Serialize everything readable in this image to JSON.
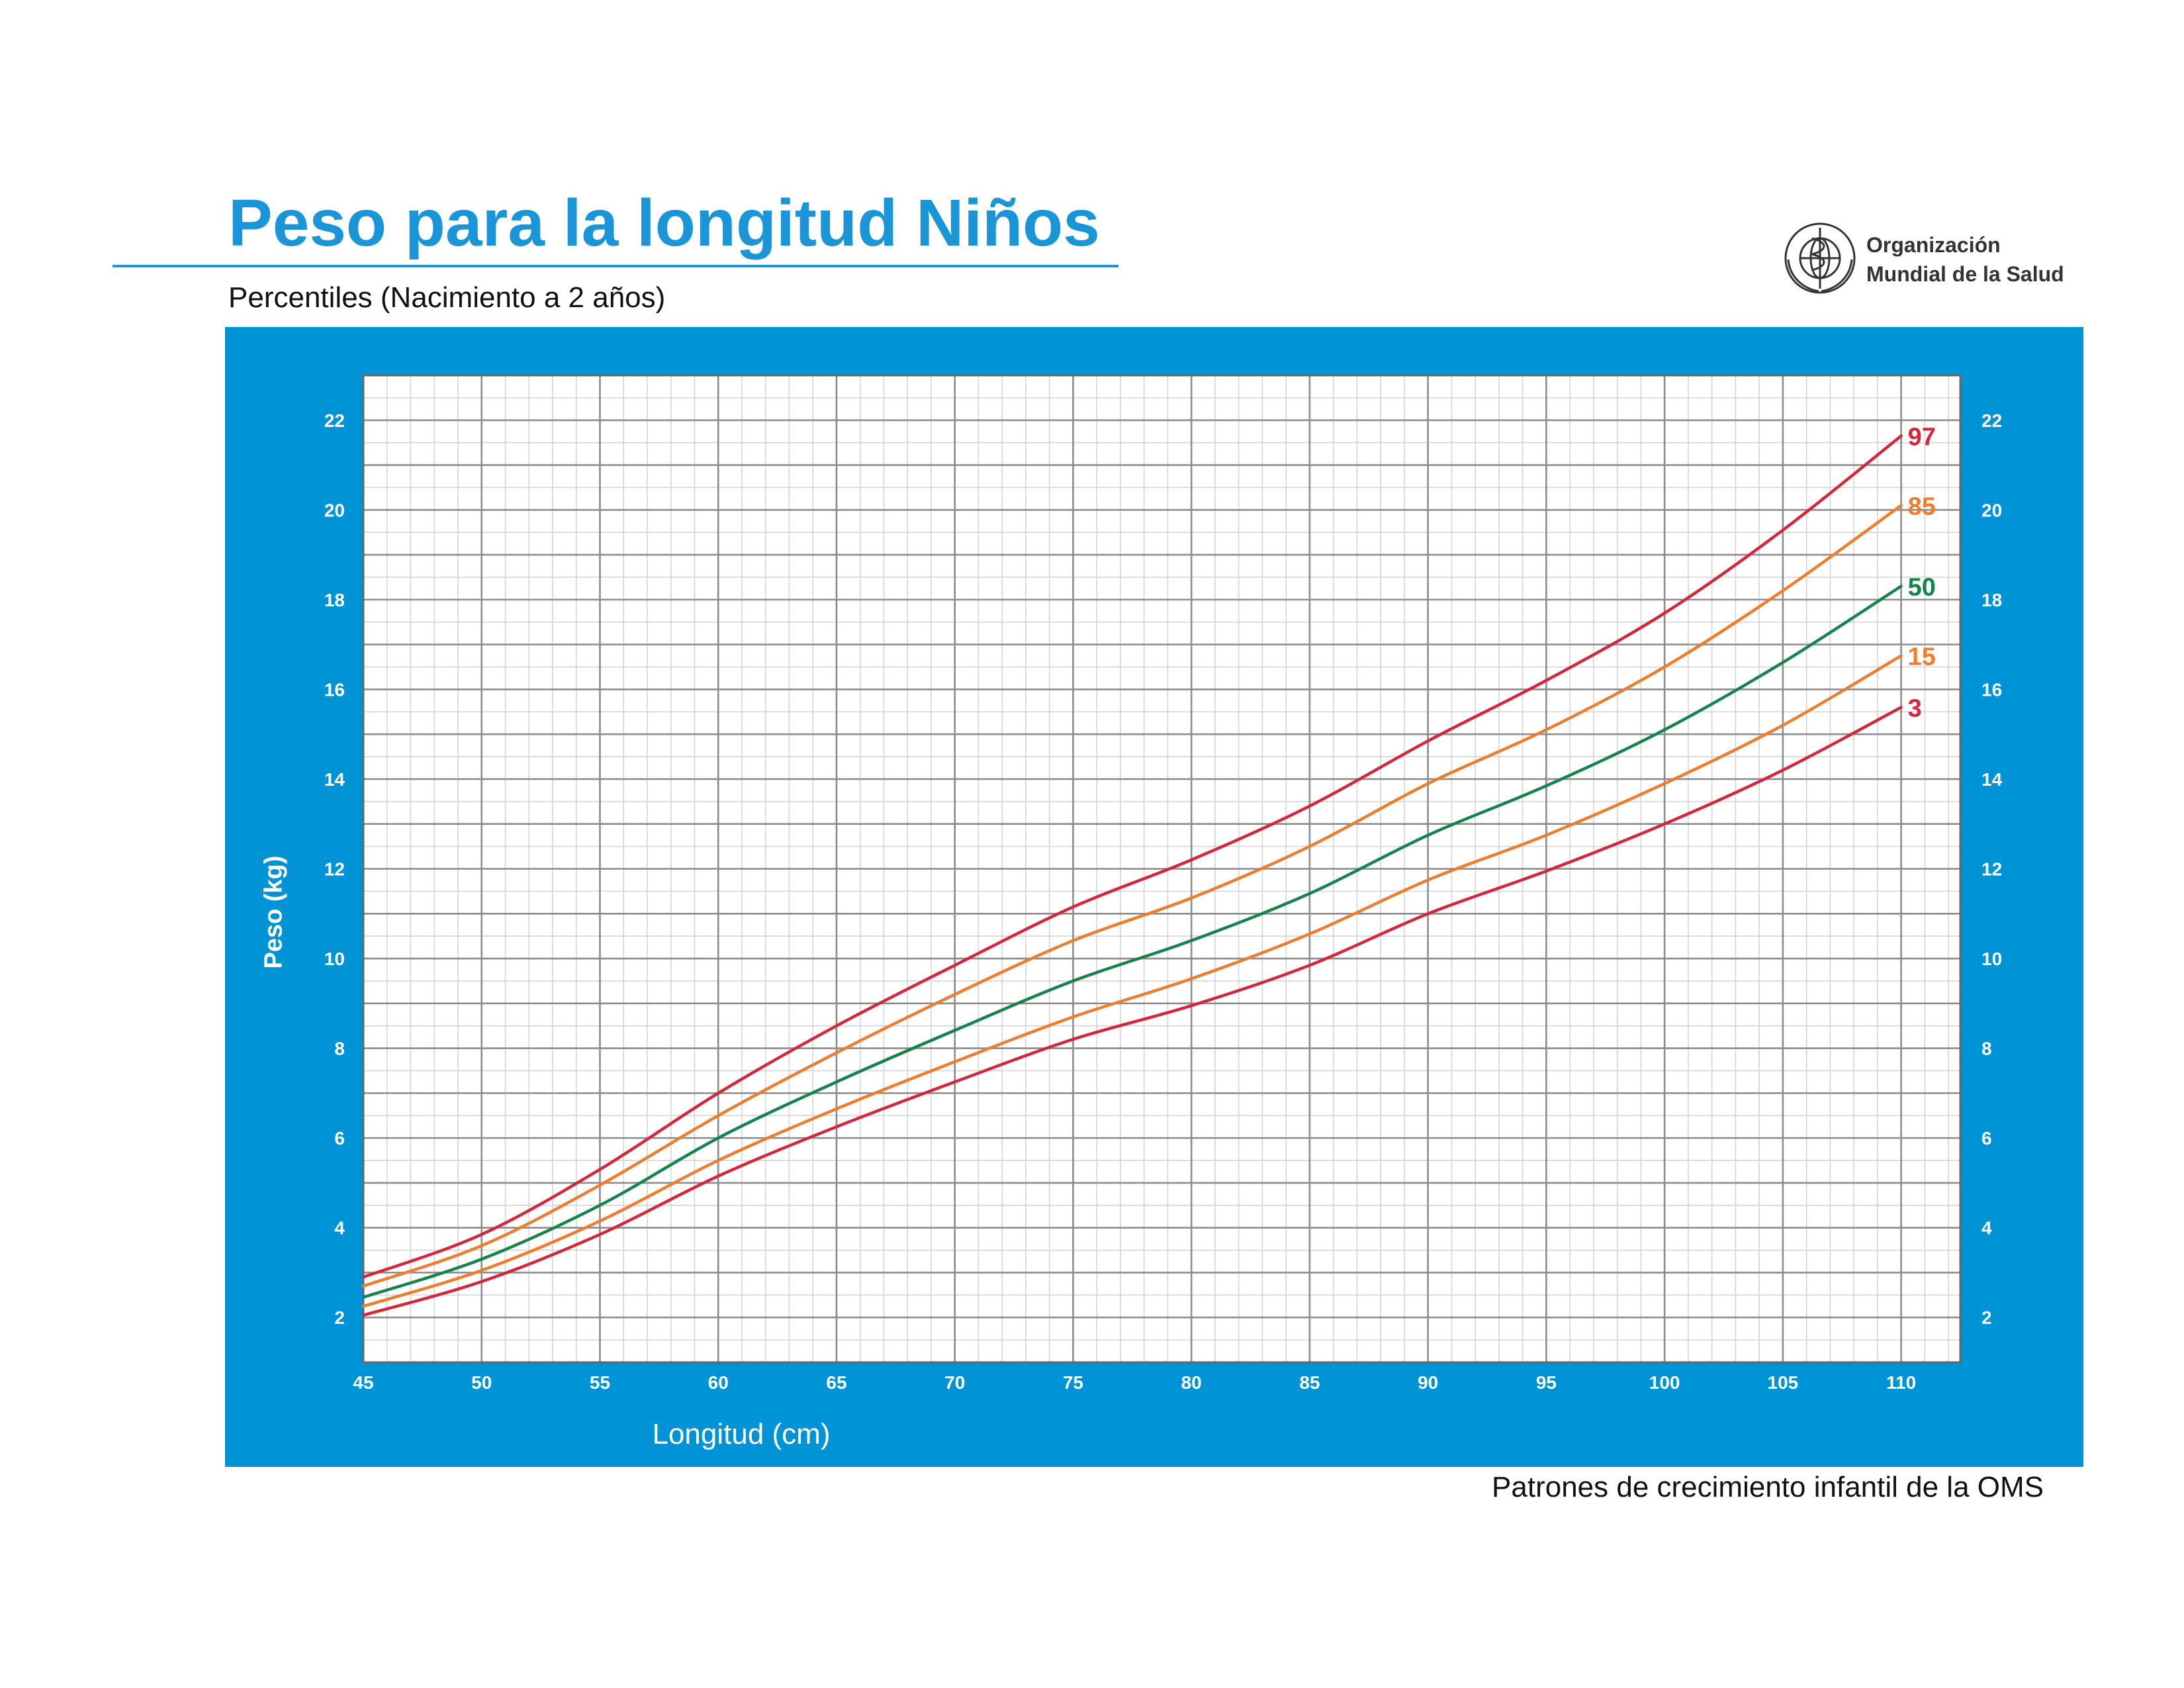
{
  "page": {
    "title": "Peso para la longitud Niños",
    "subtitle": "Percentiles (Nacimiento a 2 años)",
    "footer": "Patrones de crecimiento infantil de la OMS"
  },
  "org": {
    "name_line1": "Organización",
    "name_line2": "Mundial de la Salud",
    "emblem_icon": "who-emblem-icon"
  },
  "colors": {
    "brand_blue": "#1a96d8",
    "panel_blue": "#0094d6",
    "p3": "#d6263b",
    "p15": "#ee7d2d",
    "p50": "#15844a",
    "p85": "#ee7d2d",
    "p97": "#d6263b"
  },
  "chart_data": {
    "type": "line",
    "title": "Peso para la longitud Niños",
    "subtitle": "Percentiles (Nacimiento a 2 años)",
    "xlabel": "Longitud (cm)",
    "ylabel": "Peso (kg)",
    "xlim": [
      45,
      112.5
    ],
    "ylim": [
      1,
      23
    ],
    "xticks": [
      45,
      50,
      55,
      60,
      65,
      70,
      75,
      80,
      85,
      90,
      95,
      100,
      105,
      110
    ],
    "yticks": [
      2,
      4,
      6,
      8,
      10,
      12,
      14,
      16,
      18,
      20,
      22
    ],
    "grid": true,
    "x": [
      45,
      50,
      55,
      60,
      65,
      70,
      75,
      80,
      85,
      90,
      95,
      100,
      105,
      110
    ],
    "series": [
      {
        "name": "3",
        "color": "#d6263b",
        "values": [
          2.05,
          2.8,
          3.85,
          5.15,
          6.25,
          7.25,
          8.2,
          8.95,
          9.85,
          11.0,
          11.95,
          13.0,
          14.2,
          15.6
        ]
      },
      {
        "name": "15",
        "color": "#ee7d2d",
        "values": [
          2.25,
          3.05,
          4.15,
          5.5,
          6.65,
          7.7,
          8.7,
          9.55,
          10.55,
          11.75,
          12.75,
          13.9,
          15.2,
          16.75
        ]
      },
      {
        "name": "50",
        "color": "#15844a",
        "values": [
          2.45,
          3.3,
          4.5,
          6.0,
          7.25,
          8.4,
          9.5,
          10.4,
          11.45,
          12.75,
          13.85,
          15.1,
          16.6,
          18.3
        ]
      },
      {
        "name": "85",
        "color": "#ee7d2d",
        "values": [
          2.7,
          3.6,
          4.95,
          6.5,
          7.9,
          9.2,
          10.4,
          11.35,
          12.5,
          13.9,
          15.1,
          16.5,
          18.2,
          20.1
        ]
      },
      {
        "name": "97",
        "color": "#d6263b",
        "values": [
          2.9,
          3.85,
          5.3,
          7.0,
          8.5,
          9.85,
          11.15,
          12.2,
          13.4,
          14.85,
          16.2,
          17.7,
          19.55,
          21.65
        ]
      }
    ]
  }
}
